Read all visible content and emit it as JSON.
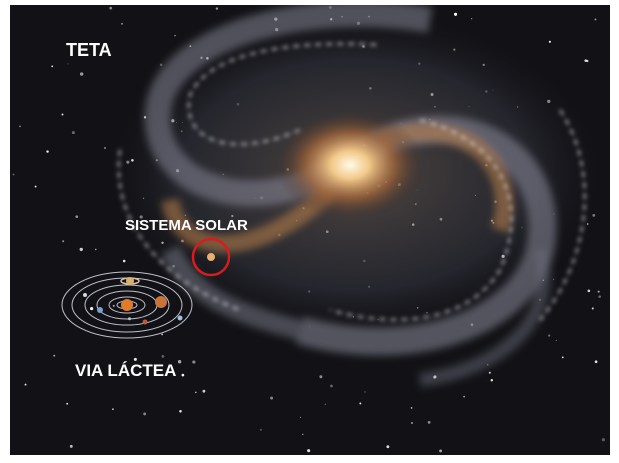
{
  "labels": [
    "TETA",
    "SISTEMA SOLAR",
    "VIA LÁCTEA"
  ]
}
